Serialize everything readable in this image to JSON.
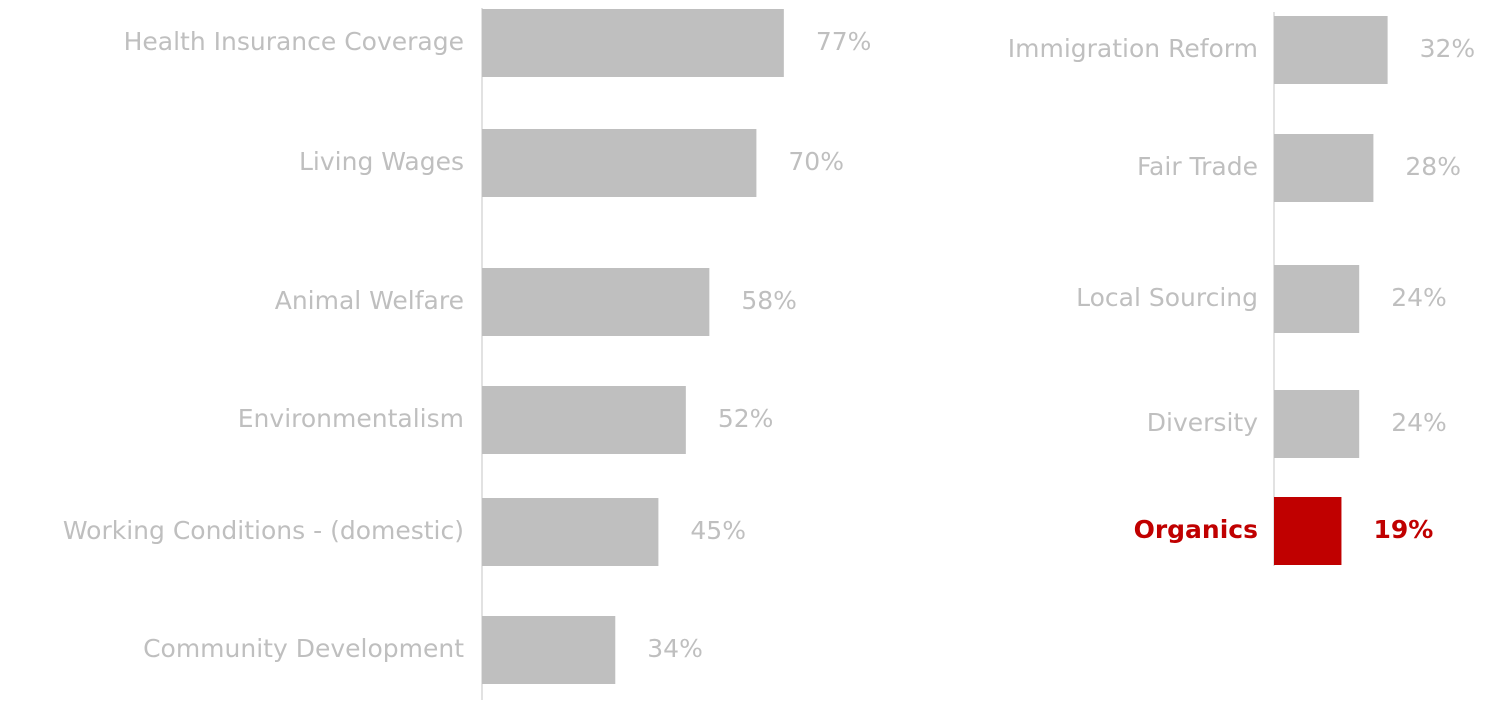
{
  "colors": {
    "background": "#ffffff",
    "bar_default": "#bfbfbf",
    "bar_highlight": "#c00000",
    "text_default": "#bfbfbf",
    "text_highlight": "#c00000",
    "axis_line": "#d9d9d9"
  },
  "chart_data": [
    {
      "type": "bar",
      "orientation": "horizontal",
      "title": "",
      "xlabel": "",
      "ylabel": "",
      "xlim": [
        0,
        100
      ],
      "grid": false,
      "legend": "none",
      "categories": [
        "Health Insurance Coverage",
        "Living Wages",
        "Animal Welfare",
        "Environmentalism",
        "Working Conditions - (domestic)",
        "Community Development"
      ],
      "values": [
        77,
        70,
        58,
        52,
        45,
        34
      ],
      "data_labels": [
        "77%",
        "70%",
        "58%",
        "52%",
        "45%",
        "34%"
      ],
      "highlighted": []
    },
    {
      "type": "bar",
      "orientation": "horizontal",
      "title": "",
      "xlabel": "",
      "ylabel": "",
      "xlim": [
        0,
        100
      ],
      "grid": false,
      "legend": "none",
      "categories": [
        "Immigration Reform",
        "Fair Trade",
        "Local Sourcing",
        "Diversity",
        "Organics"
      ],
      "values": [
        32,
        28,
        24,
        24,
        19
      ],
      "data_labels": [
        "32%",
        "28%",
        "24%",
        "24%",
        "19%"
      ],
      "highlighted": [
        "Organics"
      ]
    }
  ]
}
